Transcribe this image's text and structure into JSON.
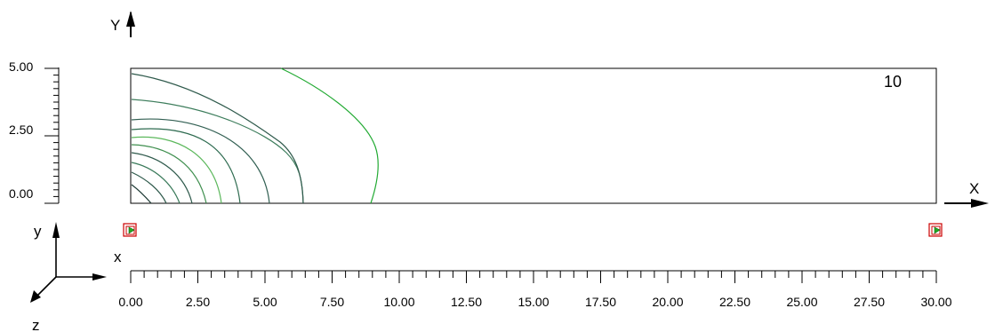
{
  "axes": {
    "y_axis_letter": "Y",
    "x_axis_letter": "X",
    "y_ticks": [
      "5.00",
      "2.50",
      "0.00"
    ],
    "x_ticks": [
      "0.00",
      "2.50",
      "5.00",
      "7.50",
      "10.00",
      "12.50",
      "15.00",
      "17.50",
      "20.00",
      "22.50",
      "25.00",
      "27.50",
      "30.00"
    ]
  },
  "contour": {
    "label": "10",
    "line_colors": [
      "#1f3b36",
      "#2f5a4c",
      "#3a7a5a",
      "#5cb85c",
      "#3f8f4f",
      "#2e6b50",
      "#315f52",
      "#3d7d5c",
      "#4a8f4f",
      "#22aa33",
      "#36b84a"
    ]
  },
  "triad": {
    "x": "x",
    "y": "y",
    "z": "z"
  },
  "markers": {
    "color": "#cc0000",
    "arrow_color": "#22aa22"
  }
}
